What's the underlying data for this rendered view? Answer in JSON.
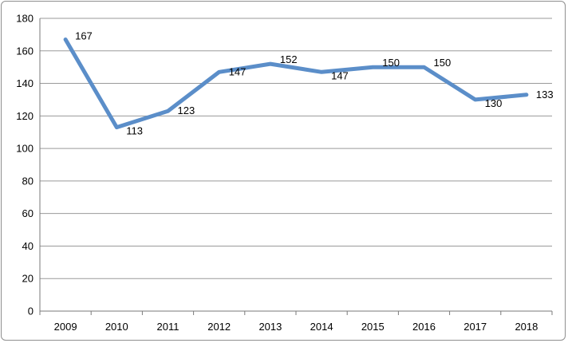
{
  "chart_data": {
    "type": "line",
    "title": "",
    "xlabel": "",
    "ylabel": "",
    "categories": [
      "2009",
      "2010",
      "2011",
      "2012",
      "2013",
      "2014",
      "2015",
      "2016",
      "2017",
      "2018"
    ],
    "series": [
      {
        "values": [
          167,
          113,
          123,
          147,
          152,
          147,
          150,
          150,
          130,
          133
        ]
      }
    ],
    "ylim": [
      0,
      180
    ],
    "yticks": [
      0,
      20,
      40,
      60,
      80,
      100,
      120,
      140,
      160,
      180
    ],
    "grid": "horizontal",
    "legend": "none",
    "colors": {
      "line": "#5b8ec9"
    }
  }
}
